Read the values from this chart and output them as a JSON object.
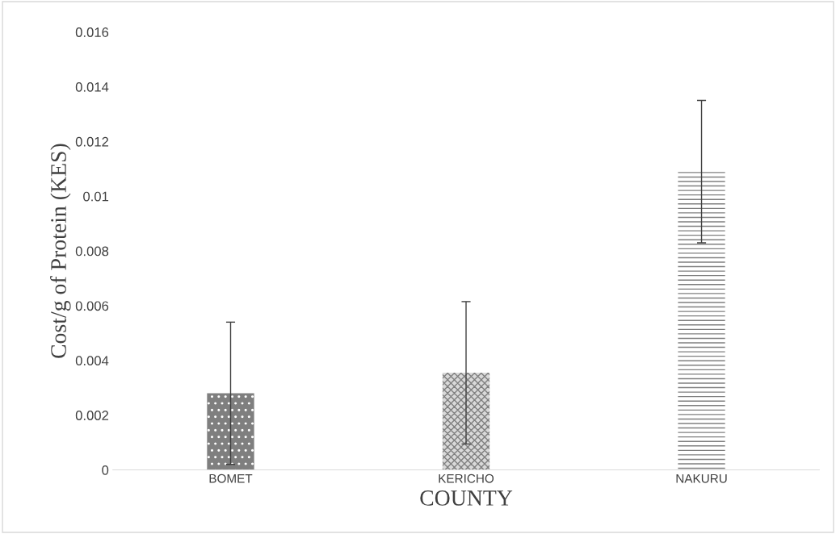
{
  "chart_data": {
    "type": "bar",
    "xlabel": "COUNTY",
    "ylabel": "Cost/g of Protein (KES)",
    "categories": [
      "BOMET",
      "KERICHO",
      "NAKURU"
    ],
    "values": [
      0.0028,
      0.00355,
      0.0109
    ],
    "errors": [
      0.0026,
      0.0026,
      0.0026
    ],
    "colors": [
      "#7f7f7f",
      "#d9d9d9",
      "#ffffff"
    ],
    "ylim": [
      0,
      0.016
    ],
    "yticks": [
      0,
      0.002,
      0.004,
      0.006,
      0.008,
      0.01,
      0.012,
      0.014,
      0.016
    ],
    "grid": false,
    "legend": false
  }
}
